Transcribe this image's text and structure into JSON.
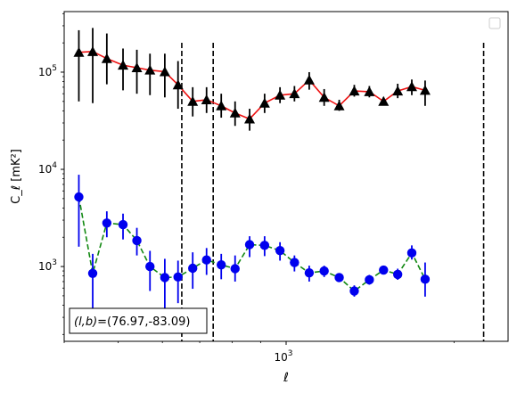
{
  "chart_data": {
    "type": "line",
    "title": "",
    "xlabel": "ℓ",
    "ylabel": "C_ℓ  [mK²]",
    "xscale": "log",
    "yscale": "log",
    "xlim": [
      400,
      2500
    ],
    "ylim": [
      170,
      420000
    ],
    "x_ticks": [
      {
        "value": 1000,
        "base": "10",
        "exp": "3"
      }
    ],
    "y_ticks": [
      {
        "value": 1000,
        "base": "10",
        "exp": "3"
      },
      {
        "value": 10000,
        "base": "10",
        "exp": "4"
      },
      {
        "value": 100000,
        "base": "10",
        "exp": "5"
      }
    ],
    "grid": false,
    "legend": {
      "placement": "top-right",
      "entries": []
    },
    "vlines": [
      650,
      740,
      2260
    ],
    "annotation": {
      "prefix": "(l,b)",
      "value": "=(76.97,-83.09)"
    },
    "series": [
      {
        "marker": "triangle",
        "marker_color": "#000000",
        "line_color": "#ee1111",
        "line_style": "solid",
        "points": [
          [
            425,
            160000,
            50000,
            270000
          ],
          [
            450,
            163000,
            48000,
            285000
          ],
          [
            477,
            138000,
            75000,
            250000
          ],
          [
            510,
            118000,
            65000,
            175000
          ],
          [
            540,
            111000,
            60000,
            170000
          ],
          [
            570,
            105000,
            58000,
            155000
          ],
          [
            606,
            101000,
            55000,
            155000
          ],
          [
            640,
            74000,
            42000,
            130000
          ],
          [
            680,
            50000,
            35000,
            70000
          ],
          [
            720,
            52000,
            38000,
            70000
          ],
          [
            765,
            45000,
            34000,
            60000
          ],
          [
            810,
            38000,
            28000,
            50000
          ],
          [
            860,
            33000,
            25000,
            42000
          ],
          [
            915,
            48000,
            38000,
            60000
          ],
          [
            975,
            58000,
            48000,
            70000
          ],
          [
            1035,
            60000,
            50000,
            72000
          ],
          [
            1100,
            83000,
            66000,
            100000
          ],
          [
            1170,
            55000,
            45000,
            67000
          ],
          [
            1245,
            45000,
            40000,
            52000
          ],
          [
            1325,
            64000,
            56000,
            74000
          ],
          [
            1410,
            63000,
            55000,
            72000
          ],
          [
            1495,
            50000,
            46000,
            55000
          ],
          [
            1585,
            64000,
            54000,
            76000
          ],
          [
            1680,
            71000,
            58000,
            84000
          ],
          [
            1775,
            65000,
            45000,
            82000
          ]
        ]
      },
      {
        "marker": "circle",
        "marker_color": "#0000ee",
        "line_color": "#118811",
        "line_style": "dashed",
        "points": [
          [
            425,
            5200,
            1600,
            8800
          ],
          [
            450,
            850,
            280,
            1350
          ],
          [
            477,
            2800,
            2000,
            3700
          ],
          [
            510,
            2700,
            1900,
            3500
          ],
          [
            540,
            1850,
            1300,
            2500
          ],
          [
            570,
            1000,
            560,
            1450
          ],
          [
            606,
            770,
            360,
            1200
          ],
          [
            640,
            780,
            420,
            1150
          ],
          [
            680,
            960,
            590,
            1400
          ],
          [
            720,
            1170,
            820,
            1550
          ],
          [
            765,
            1040,
            740,
            1350
          ],
          [
            810,
            950,
            700,
            1300
          ],
          [
            860,
            1680,
            1250,
            2050
          ],
          [
            915,
            1650,
            1280,
            2050
          ],
          [
            975,
            1460,
            1150,
            1780
          ],
          [
            1035,
            1100,
            890,
            1300
          ],
          [
            1100,
            860,
            700,
            1020
          ],
          [
            1170,
            900,
            780,
            1020
          ],
          [
            1245,
            770,
            700,
            850
          ],
          [
            1325,
            560,
            490,
            640
          ],
          [
            1410,
            730,
            650,
            820
          ],
          [
            1495,
            920,
            830,
            1000
          ],
          [
            1585,
            830,
            730,
            950
          ],
          [
            1680,
            1380,
            1180,
            1650
          ],
          [
            1775,
            740,
            490,
            1100
          ]
        ]
      }
    ]
  }
}
